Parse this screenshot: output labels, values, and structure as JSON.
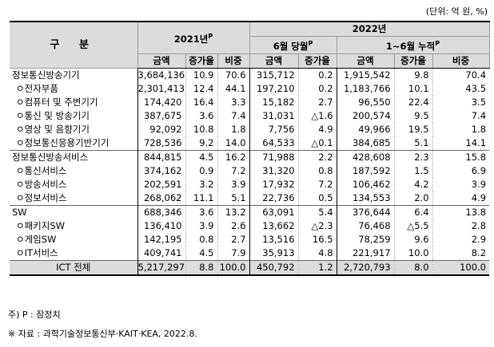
{
  "unit": "(단위: 억 원, %)",
  "header": {
    "category": "구 분",
    "year2021": "2021년",
    "year2021_sup": "P",
    "year2022": "2022년",
    "june_month": "6월 당월",
    "june_month_sup": "P",
    "cumulative": "1~6월 누적",
    "cumulative_sup": "P",
    "amount": "금액",
    "growth": "증가율",
    "share": "비중"
  },
  "rows": [
    {
      "label": "정보통신방송기기",
      "v": [
        "3,684,136",
        "10.9",
        "70.6",
        "315,712",
        "0.2",
        "1,915,542",
        "9.8",
        "70.4"
      ]
    },
    {
      "label": "ㅇ전자부품",
      "v": [
        "2,301,413",
        "12.4",
        "44.1",
        "197,210",
        "0.2",
        "1,183,766",
        "10.1",
        "43.5"
      ]
    },
    {
      "label": "ㅇ컴퓨터 및 주변기기",
      "v": [
        "174,420",
        "16.4",
        "3.3",
        "15,182",
        "2.7",
        "96,550",
        "22.4",
        "3.5"
      ]
    },
    {
      "label": "ㅇ통신 및 방송기기",
      "v": [
        "387,675",
        "3.6",
        "7.4",
        "31,031",
        "△1.6",
        "200,574",
        "9.5",
        "7.4"
      ]
    },
    {
      "label": "ㅇ영상 및 음향기기",
      "v": [
        "92,092",
        "10.8",
        "1.8",
        "7,756",
        "4.9",
        "49,966",
        "19.5",
        "1.8"
      ]
    },
    {
      "label": "ㅇ정보통신응용기반기기",
      "v": [
        "728,536",
        "9.2",
        "14.0",
        "64,533",
        "△0.1",
        "384,685",
        "5.1",
        "14.1"
      ]
    },
    {
      "label": "정보통신방송서비스",
      "v": [
        "844,815",
        "4.5",
        "16.2",
        "71,988",
        "2.2",
        "428,608",
        "2.3",
        "15.8"
      ]
    },
    {
      "label": "ㅇ통신서비스",
      "v": [
        "374,162",
        "0.9",
        "7.2",
        "31,320",
        "0.8",
        "187,592",
        "1.5",
        "6.9"
      ]
    },
    {
      "label": "ㅇ방송서비스",
      "v": [
        "202,591",
        "3.2",
        "3.9",
        "17,932",
        "7.2",
        "106,462",
        "4.2",
        "3.9"
      ]
    },
    {
      "label": "ㅇ정보서비스",
      "v": [
        "268,062",
        "11.1",
        "5.1",
        "22,736",
        "0.5",
        "134,553",
        "2.0",
        "4.9"
      ]
    },
    {
      "label": "SW",
      "v": [
        "688,346",
        "3.6",
        "13.2",
        "63,091",
        "5.4",
        "376,644",
        "6.4",
        "13.8"
      ]
    },
    {
      "label": "ㅇ패키지SW",
      "v": [
        "136,410",
        "3.9",
        "2.6",
        "13,662",
        "△2.3",
        "76,468",
        "△5.5",
        "2.8"
      ]
    },
    {
      "label": "ㅇ게임SW",
      "v": [
        "142,195",
        "0.8",
        "2.7",
        "13,516",
        "16.5",
        "78,259",
        "9.6",
        "2.9"
      ]
    },
    {
      "label": "ㅇIT서비스",
      "v": [
        "409,741",
        "4.5",
        "7.9",
        "35,913",
        "4.8",
        "221,917",
        "10.0",
        "8.2"
      ]
    },
    {
      "label": "ICT 전체",
      "v": [
        "5,217,297",
        "8.8",
        "100.0",
        "450,792",
        "1.2",
        "2,720,793",
        "8.0",
        "100.0"
      ]
    }
  ],
  "notes": {
    "prelim": "주) P : 잠정치",
    "source": "※ 자료 : 과학기술정보통신부·KAIT·KEA, 2022.8."
  }
}
